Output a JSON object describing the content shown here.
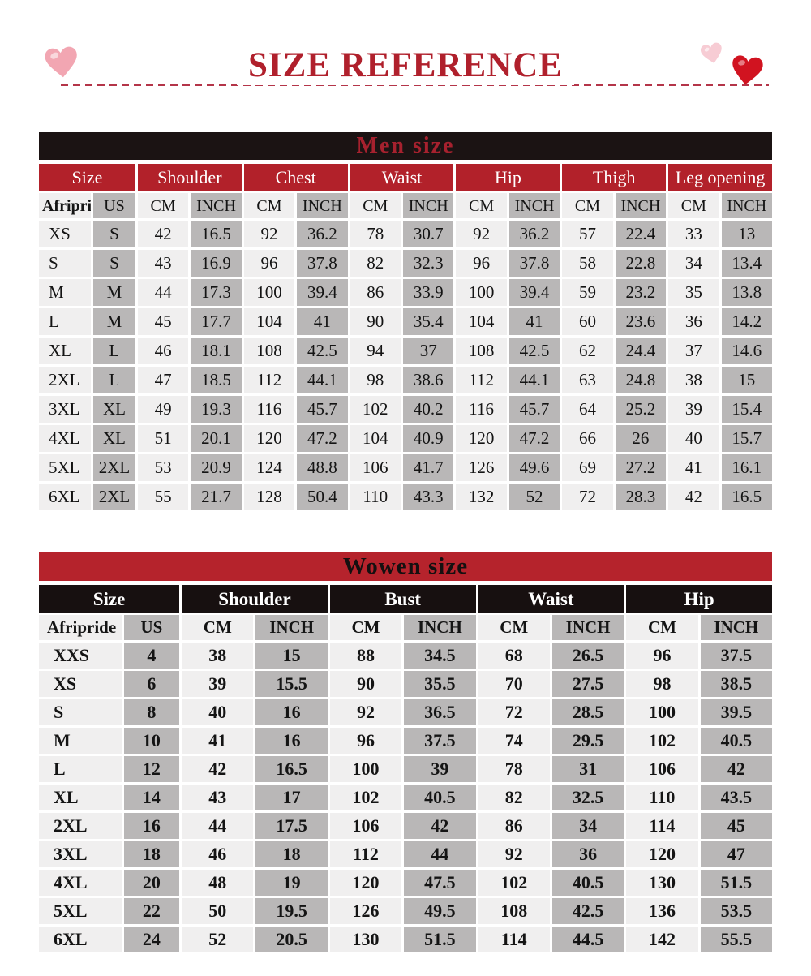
{
  "title": "SIZE REFERENCE",
  "colors": {
    "title_red": "#b0202c",
    "dash_red": "#b43549",
    "men_bar_bg": "#1b1313",
    "men_bar_text": "#a6212e",
    "men_group_red": "#b2212a",
    "women_bar_red": "#b5232c",
    "women_group_black": "#171010",
    "cell_light": "#f0efef",
    "cell_gray": "#b9b7b7",
    "heart_pink": "#f2a6b2",
    "heart_pale_pink": "#f7ccd4",
    "heart_red": "#d11320"
  },
  "decorations": {
    "left_heart": "pink-heart-icon",
    "right_small_heart": "pale-pink-heart-icon",
    "right_large_heart": "red-heart-icon"
  },
  "men_table": {
    "title": "Men size",
    "groups": [
      {
        "label": "Size",
        "span": 2
      },
      {
        "label": "Shoulder",
        "span": 2
      },
      {
        "label": "Chest",
        "span": 2
      },
      {
        "label": "Waist",
        "span": 2
      },
      {
        "label": "Hip",
        "span": 2
      },
      {
        "label": "Thigh",
        "span": 2
      },
      {
        "label": "Leg opening",
        "span": 2
      }
    ],
    "subheaders": [
      "Afripride",
      "US",
      "CM",
      "INCH",
      "CM",
      "INCH",
      "CM",
      "INCH",
      "CM",
      "INCH",
      "CM",
      "INCH",
      "CM",
      "INCH"
    ],
    "rows": [
      [
        "XS",
        "S",
        "42",
        "16.5",
        "92",
        "36.2",
        "78",
        "30.7",
        "92",
        "36.2",
        "57",
        "22.4",
        "33",
        "13"
      ],
      [
        "S",
        "S",
        "43",
        "16.9",
        "96",
        "37.8",
        "82",
        "32.3",
        "96",
        "37.8",
        "58",
        "22.8",
        "34",
        "13.4"
      ],
      [
        "M",
        "M",
        "44",
        "17.3",
        "100",
        "39.4",
        "86",
        "33.9",
        "100",
        "39.4",
        "59",
        "23.2",
        "35",
        "13.8"
      ],
      [
        "L",
        "M",
        "45",
        "17.7",
        "104",
        "41",
        "90",
        "35.4",
        "104",
        "41",
        "60",
        "23.6",
        "36",
        "14.2"
      ],
      [
        "XL",
        "L",
        "46",
        "18.1",
        "108",
        "42.5",
        "94",
        "37",
        "108",
        "42.5",
        "62",
        "24.4",
        "37",
        "14.6"
      ],
      [
        "2XL",
        "L",
        "47",
        "18.5",
        "112",
        "44.1",
        "98",
        "38.6",
        "112",
        "44.1",
        "63",
        "24.8",
        "38",
        "15"
      ],
      [
        "3XL",
        "XL",
        "49",
        "19.3",
        "116",
        "45.7",
        "102",
        "40.2",
        "116",
        "45.7",
        "64",
        "25.2",
        "39",
        "15.4"
      ],
      [
        "4XL",
        "XL",
        "51",
        "20.1",
        "120",
        "47.2",
        "104",
        "40.9",
        "120",
        "47.2",
        "66",
        "26",
        "40",
        "15.7"
      ],
      [
        "5XL",
        "2XL",
        "53",
        "20.9",
        "124",
        "48.8",
        "106",
        "41.7",
        "126",
        "49.6",
        "69",
        "27.2",
        "41",
        "16.1"
      ],
      [
        "6XL",
        "2XL",
        "55",
        "21.7",
        "128",
        "50.4",
        "110",
        "43.3",
        "132",
        "52",
        "72",
        "28.3",
        "42",
        "16.5"
      ]
    ]
  },
  "women_table": {
    "title": "Wowen size",
    "groups": [
      {
        "label": "Size",
        "span": 2
      },
      {
        "label": "Shoulder",
        "span": 2
      },
      {
        "label": "Bust",
        "span": 2
      },
      {
        "label": "Waist",
        "span": 2
      },
      {
        "label": "Hip",
        "span": 2
      }
    ],
    "subheaders": [
      "Afripride",
      "US",
      "CM",
      "INCH",
      "CM",
      "INCH",
      "CM",
      "INCH",
      "CM",
      "INCH"
    ],
    "rows": [
      [
        "XXS",
        "4",
        "38",
        "15",
        "88",
        "34.5",
        "68",
        "26.5",
        "96",
        "37.5"
      ],
      [
        "XS",
        "6",
        "39",
        "15.5",
        "90",
        "35.5",
        "70",
        "27.5",
        "98",
        "38.5"
      ],
      [
        "S",
        "8",
        "40",
        "16",
        "92",
        "36.5",
        "72",
        "28.5",
        "100",
        "39.5"
      ],
      [
        "M",
        "10",
        "41",
        "16",
        "96",
        "37.5",
        "74",
        "29.5",
        "102",
        "40.5"
      ],
      [
        "L",
        "12",
        "42",
        "16.5",
        "100",
        "39",
        "78",
        "31",
        "106",
        "42"
      ],
      [
        "XL",
        "14",
        "43",
        "17",
        "102",
        "40.5",
        "82",
        "32.5",
        "110",
        "43.5"
      ],
      [
        "2XL",
        "16",
        "44",
        "17.5",
        "106",
        "42",
        "86",
        "34",
        "114",
        "45"
      ],
      [
        "3XL",
        "18",
        "46",
        "18",
        "112",
        "44",
        "92",
        "36",
        "120",
        "47"
      ],
      [
        "4XL",
        "20",
        "48",
        "19",
        "120",
        "47.5",
        "102",
        "40.5",
        "130",
        "51.5"
      ],
      [
        "5XL",
        "22",
        "50",
        "19.5",
        "126",
        "49.5",
        "108",
        "42.5",
        "136",
        "53.5"
      ],
      [
        "6XL",
        "24",
        "52",
        "20.5",
        "130",
        "51.5",
        "114",
        "44.5",
        "142",
        "55.5"
      ]
    ]
  }
}
